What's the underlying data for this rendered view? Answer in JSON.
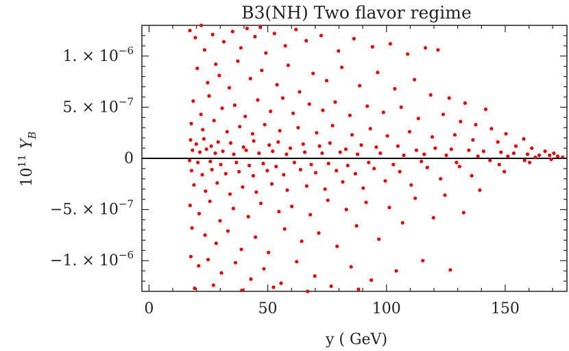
{
  "chart_data": {
    "type": "scatter",
    "title": "B3(NH) Two flavor regime",
    "xlabel": "y ( GeV)",
    "ylabel_prefix": "10",
    "ylabel_exp": "11",
    "ylabel_var": "Y",
    "ylabel_sub": "B",
    "xlim": [
      -3,
      176
    ],
    "ylim": [
      -1.3e-06,
      1.3e-06
    ],
    "x_ticks": [
      {
        "value": 0,
        "label": "0"
      },
      {
        "value": 50,
        "label": "50"
      },
      {
        "value": 100,
        "label": "100"
      },
      {
        "value": 150,
        "label": "150"
      }
    ],
    "y_ticks": [
      {
        "value": 1e-06,
        "mant": "1. × 10",
        "exp": "−6"
      },
      {
        "value": 5e-07,
        "mant": "5. × 10",
        "exp": "−7"
      },
      {
        "value": 0,
        "mant": "0",
        "exp": ""
      },
      {
        "value": -5e-07,
        "mant": "−5. × 10",
        "exp": "−7"
      },
      {
        "value": -1e-06,
        "mant": "−1. × 10",
        "exp": "−6"
      }
    ],
    "zero_line": true,
    "marker_color": "#ee0000",
    "series": [
      {
        "points": [
          [
            17.2,
            1.25e-06
          ],
          [
            19.5,
            1.18e-06
          ],
          [
            22,
            1.3e-06
          ],
          [
            23.4,
            1.06e-06
          ],
          [
            26.8,
            1.21e-06
          ],
          [
            28.1,
            9.2e-07
          ],
          [
            31.5,
            1.14e-06
          ],
          [
            35.2,
            1.24e-06
          ],
          [
            38.7,
            1.08e-06
          ],
          [
            41.3,
            1.27e-06
          ],
          [
            44.6,
            1.19e-06
          ],
          [
            46.9,
            1.28e-06
          ],
          [
            49.2,
            1.03e-06
          ],
          [
            52.8,
            1.22e-06
          ],
          [
            57.4,
            1.1e-06
          ],
          [
            61.9,
            1.26e-06
          ],
          [
            66.2,
            1.15e-06
          ],
          [
            72.5,
            1.2e-06
          ],
          [
            79.8,
            1.05e-06
          ],
          [
            86.3,
            1.17e-06
          ],
          [
            94.1,
            1.09e-06
          ],
          [
            101.6,
            1.12e-06
          ],
          [
            108.9,
            1.02e-06
          ],
          [
            116.4,
            1.08e-06
          ],
          [
            121.7,
            1.06e-06
          ],
          [
            20.3,
            8.8e-07
          ],
          [
            24.7,
            7.4e-07
          ],
          [
            29.6,
            8.1e-07
          ],
          [
            33.8,
            6.9e-07
          ],
          [
            37.4,
            9.5e-07
          ],
          [
            42.7,
            7.8e-07
          ],
          [
            47.5,
            8.6e-07
          ],
          [
            53.9,
            7.2e-07
          ],
          [
            58.6,
            9.1e-07
          ],
          [
            63.4,
            6.5e-07
          ],
          [
            69.1,
            8.3e-07
          ],
          [
            74.8,
            7.6e-07
          ],
          [
            81.2,
            8.9e-07
          ],
          [
            88.7,
            7.1e-07
          ],
          [
            96.3,
            8.4e-07
          ],
          [
            103.5,
            6.8e-07
          ],
          [
            111.8,
            7.7e-07
          ],
          [
            118.6,
            6.2e-07
          ],
          [
            126.4,
            5.9e-07
          ],
          [
            133.1,
            5.4e-07
          ],
          [
            141.8,
            4.8e-07
          ],
          [
            18.6,
            5.6e-07
          ],
          [
            21.9,
            4.3e-07
          ],
          [
            25.3,
            6.1e-07
          ],
          [
            30.8,
            4.9e-07
          ],
          [
            36.1,
            5.2e-07
          ],
          [
            40.5,
            4.1e-07
          ],
          [
            45.8,
            5.7e-07
          ],
          [
            51.2,
            4.6e-07
          ],
          [
            56.3,
            5.9e-07
          ],
          [
            60.7,
            4.4e-07
          ],
          [
            67.5,
            5.3e-07
          ],
          [
            73.2,
            4.7e-07
          ],
          [
            78.4,
            5.5e-07
          ],
          [
            84.6,
            4.2e-07
          ],
          [
            91.9,
            5.1e-07
          ],
          [
            98.7,
            4.5e-07
          ],
          [
            106.2,
            5e-07
          ],
          [
            113.4,
            3.9e-07
          ],
          [
            123.9,
            4.3e-07
          ],
          [
            131.2,
            3.6e-07
          ],
          [
            137.6,
            3.3e-07
          ],
          [
            144.2,
            2.9e-07
          ],
          [
            150.3,
            2.4e-07
          ],
          [
            157.8,
            1.9e-07
          ],
          [
            17.8,
            3.4e-07
          ],
          [
            22.6,
            2.8e-07
          ],
          [
            27.4,
            3.7e-07
          ],
          [
            32.9,
            2.6e-07
          ],
          [
            38.2,
            3.1e-07
          ],
          [
            43.6,
            2.4e-07
          ],
          [
            48.7,
            3.3e-07
          ],
          [
            55.1,
            2.7e-07
          ],
          [
            62.8,
            3e-07
          ],
          [
            70.6,
            2.5e-07
          ],
          [
            77.3,
            3.2e-07
          ],
          [
            85.5,
            2.3e-07
          ],
          [
            93.2,
            2.9e-07
          ],
          [
            100.4,
            2.2e-07
          ],
          [
            109.7,
            2.6e-07
          ],
          [
            119.3,
            2.1e-07
          ],
          [
            128.8,
            2.3e-07
          ],
          [
            136.4,
            1.8e-07
          ],
          [
            146.9,
            1.6e-07
          ],
          [
            154.5,
            1.2e-07
          ],
          [
            161.2,
            1e-07
          ],
          [
            166.8,
            7e-08
          ],
          [
            170.5,
            5e-08
          ],
          [
            17.5,
            1.8e-07
          ],
          [
            19.9,
            1.4e-07
          ],
          [
            23.1,
            1.9e-07
          ],
          [
            26.2,
            1.2e-07
          ],
          [
            29.1,
            1.6e-07
          ],
          [
            34.4,
            1.5e-07
          ],
          [
            39.8,
            1.1e-07
          ],
          [
            44.1,
            1.7e-07
          ],
          [
            50.6,
            1.3e-07
          ],
          [
            54.4,
            1.6e-07
          ],
          [
            59.5,
            1e-07
          ],
          [
            64.9,
            1.4e-07
          ],
          [
            71.8,
            1.2e-07
          ],
          [
            76.2,
            1.5e-07
          ],
          [
            82.9,
            9e-08
          ],
          [
            89.4,
            1.3e-07
          ],
          [
            95.7,
            1.1e-07
          ],
          [
            104.8,
            1.2e-07
          ],
          [
            112.6,
            8e-08
          ],
          [
            120.5,
            1e-07
          ],
          [
            127.3,
            9e-08
          ],
          [
            134.7,
            8e-08
          ],
          [
            140.9,
            7e-08
          ],
          [
            148.2,
            6e-08
          ],
          [
            153.6,
            5e-08
          ],
          [
            159.4,
            4e-08
          ],
          [
            164.3,
            3e-08
          ],
          [
            168.7,
            3e-08
          ],
          [
            172.1,
            2e-08
          ],
          [
            18.3,
            8e-08
          ],
          [
            21.4,
            6e-08
          ],
          [
            24.2,
            9e-08
          ],
          [
            27.9,
            5e-08
          ],
          [
            31.1,
            7e-08
          ],
          [
            35.7,
            4e-08
          ],
          [
            40.9,
            8e-08
          ],
          [
            46.3,
            5e-08
          ],
          [
            52.1,
            7e-08
          ],
          [
            57.9,
            4e-08
          ],
          [
            65.6,
            6e-08
          ],
          [
            72.9,
            5e-08
          ],
          [
            80.5,
            6e-08
          ],
          [
            87.8,
            4e-08
          ],
          [
            97.4,
            5e-08
          ],
          [
            107.3,
            3e-08
          ],
          [
            115.9,
            4e-08
          ],
          [
            125.2,
            3e-08
          ],
          [
            138.5,
            2e-08
          ],
          [
            151.1,
            2e-08
          ],
          [
            162.7,
            1e-08
          ],
          [
            174.2,
            1e-08
          ],
          [
            17.1,
            -2e-08
          ],
          [
            20.6,
            -4e-08
          ],
          [
            25.8,
            -3e-08
          ],
          [
            30.2,
            -6e-08
          ],
          [
            36.8,
            -4e-08
          ],
          [
            42.2,
            -7e-08
          ],
          [
            48.1,
            -5e-08
          ],
          [
            53.5,
            -8e-08
          ],
          [
            61.2,
            -4e-08
          ],
          [
            68.3,
            -6e-08
          ],
          [
            75.6,
            -5e-08
          ],
          [
            83.7,
            -7e-08
          ],
          [
            92.5,
            -4e-08
          ],
          [
            102.9,
            -6e-08
          ],
          [
            114.7,
            -3e-08
          ],
          [
            129.5,
            -4e-08
          ],
          [
            143.6,
            -2e-08
          ],
          [
            158.2,
            -2e-08
          ],
          [
            169.4,
            -1e-08
          ],
          [
            17.9,
            -1.2e-07
          ],
          [
            22.4,
            -1.6e-07
          ],
          [
            26.5,
            -1.1e-07
          ],
          [
            32.3,
            -1.5e-07
          ],
          [
            37.9,
            -1.3e-07
          ],
          [
            43.9,
            -1.7e-07
          ],
          [
            49.8,
            -1.2e-07
          ],
          [
            56.7,
            -1.6e-07
          ],
          [
            63.8,
            -1.1e-07
          ],
          [
            70.2,
            -1.4e-07
          ],
          [
            78.9,
            -1.2e-07
          ],
          [
            86.9,
            -1.5e-07
          ],
          [
            94.8,
            -1e-07
          ],
          [
            105.6,
            -1.3e-07
          ],
          [
            117.2,
            -9e-08
          ],
          [
            130.8,
            -8e-08
          ],
          [
            147.5,
            -6e-08
          ],
          [
            160.3,
            -4e-08
          ],
          [
            18.9,
            -2.6e-07
          ],
          [
            23.8,
            -3.2e-07
          ],
          [
            28.7,
            -2.4e-07
          ],
          [
            34.1,
            -3.5e-07
          ],
          [
            39.4,
            -2.8e-07
          ],
          [
            45.2,
            -3.3e-07
          ],
          [
            51.7,
            -2.5e-07
          ],
          [
            58.2,
            -3.1e-07
          ],
          [
            66.4,
            -2.7e-07
          ],
          [
            74.1,
            -3e-07
          ],
          [
            81.6,
            -2.3e-07
          ],
          [
            90.2,
            -2.9e-07
          ],
          [
            99.5,
            -2.2e-07
          ],
          [
            110.4,
            -2.6e-07
          ],
          [
            122.8,
            -2e-07
          ],
          [
            135.9,
            -1.7e-07
          ],
          [
            149.6,
            -1.3e-07
          ],
          [
            17.3,
            -4.6e-07
          ],
          [
            21.1,
            -5.4e-07
          ],
          [
            25.6,
            -4.2e-07
          ],
          [
            29.9,
            -6.1e-07
          ],
          [
            35.5,
            -4.9e-07
          ],
          [
            41.8,
            -5.7e-07
          ],
          [
            47.1,
            -4.4e-07
          ],
          [
            54.7,
            -5.2e-07
          ],
          [
            60.1,
            -4.7e-07
          ],
          [
            67.9,
            -5.5e-07
          ],
          [
            75.3,
            -4.1e-07
          ],
          [
            83.1,
            -5e-07
          ],
          [
            91.4,
            -4.3e-07
          ],
          [
            101.2,
            -4.8e-07
          ],
          [
            112.1,
            -3.9e-07
          ],
          [
            124.6,
            -3.6e-07
          ],
          [
            139.3,
            -3.1e-07
          ],
          [
            18.1,
            -6.8e-07
          ],
          [
            23.6,
            -7.5e-07
          ],
          [
            28.3,
            -8.3e-07
          ],
          [
            33.2,
            -7.1e-07
          ],
          [
            38.9,
            -8.9e-07
          ],
          [
            44.8,
            -7.7e-07
          ],
          [
            50.3,
            -9.2e-07
          ],
          [
            57.1,
            -6.9e-07
          ],
          [
            64.3,
            -8.1e-07
          ],
          [
            71.5,
            -7.3e-07
          ],
          [
            79.2,
            -8.6e-07
          ],
          [
            87.4,
            -6.6e-07
          ],
          [
            96.8,
            -7.9e-07
          ],
          [
            106.8,
            -6.3e-07
          ],
          [
            119.8,
            -5.8e-07
          ],
          [
            132.5,
            -5.3e-07
          ],
          [
            17.6,
            -9.6e-07
          ],
          [
            20.9,
            -1.05e-06
          ],
          [
            24.9,
            -9.9e-07
          ],
          [
            30.5,
            -1.12e-06
          ],
          [
            36.4,
            -1.02e-06
          ],
          [
            42.9,
            -1.18e-06
          ],
          [
            48.4,
            -1.08e-06
          ],
          [
            55.6,
            -1.22e-06
          ],
          [
            62.2,
            -1.01e-06
          ],
          [
            69.8,
            -1.15e-06
          ],
          [
            76.7,
            -1.25e-06
          ],
          [
            85.1,
            -1.06e-06
          ],
          [
            93.6,
            -1.19e-06
          ],
          [
            104.1,
            -1.1e-06
          ],
          [
            115.3,
            -1e-06
          ],
          [
            126.9,
            -1.09e-06
          ],
          [
            19.2,
            -1.27e-06
          ],
          [
            27.1,
            -1.24e-06
          ],
          [
            39.1,
            -1.29e-06
          ],
          [
            52.4,
            -1.26e-06
          ],
          [
            66.8,
            -1.3e-06
          ],
          [
            88.2,
            -1.28e-06
          ]
        ]
      }
    ]
  }
}
